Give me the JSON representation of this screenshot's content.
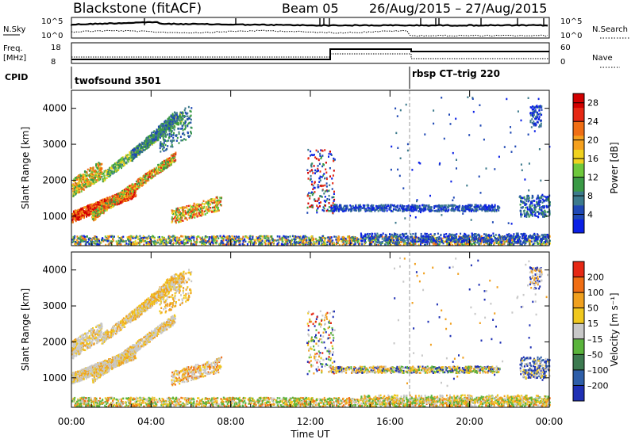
{
  "header": {
    "title": "Blackstone (fitACF)",
    "beam": "Beam 05",
    "dates": "26/Aug/2015 – 27/Aug/2015"
  },
  "status_panels": {
    "nsky_label": "N.Sky",
    "nsky_tick_top": "10^5",
    "nsky_tick_bottom": "10^0",
    "nsearch_label": "N.Search",
    "nsearch_tick_top": "10^5",
    "nsearch_tick_bottom": "10^0",
    "freq_label_1": "Freq.",
    "freq_label_2": "[MHz]",
    "freq_tick_top": "18",
    "freq_tick_bottom": "8",
    "nave_label": "Nave",
    "nave_tick_top": "60",
    "nave_tick_bottom": "0",
    "cpid_label": "CPID",
    "cpid_1": "twofsound 3501",
    "cpid_2": "rbsp CT–trig 220"
  },
  "colors": {
    "power": [
      "#0a1fe6",
      "#1f48b4",
      "#3c7a8c",
      "#3a9a46",
      "#6ec83c",
      "#f0d21e",
      "#f5a01e",
      "#f06e14",
      "#e62814",
      "#d20000"
    ],
    "velocity": [
      "#1f30b4",
      "#2e5ea8",
      "#3c7a50",
      "#5ab43c",
      "#c8c8c8",
      "#f0c81e",
      "#f0a01e",
      "#f06e14",
      "#e62814"
    ]
  },
  "chart_data": [
    {
      "type": "heatmap",
      "name": "power",
      "ylabel": "Slant Range [km]",
      "yticks": [
        "1000",
        "2000",
        "3000",
        "4000"
      ],
      "ylim": [
        180,
        4500
      ],
      "xticks": [
        "00:00",
        "04:00",
        "08:00",
        "12:00",
        "16:00",
        "20:00",
        "00:00"
      ],
      "xlim": [
        0,
        24
      ],
      "colorbar_label": "Power [dB]",
      "colorbar_ticks": [
        "4",
        "8",
        "12",
        "16",
        "20",
        "24",
        "28"
      ],
      "colorbar_range": [
        0,
        30
      ]
    },
    {
      "type": "heatmap",
      "name": "velocity",
      "ylabel": "Slant Range [km]",
      "yticks": [
        "1000",
        "2000",
        "3000",
        "4000"
      ],
      "ylim": [
        180,
        4500
      ],
      "xticks": [
        "00:00",
        "04:00",
        "08:00",
        "12:00",
        "16:00",
        "20:00",
        "00:00"
      ],
      "xlim": [
        0,
        24
      ],
      "xlabel": "Time UT",
      "colorbar_label": "Velocity [m s⁻¹]",
      "colorbar_ticks": [
        "200",
        "100",
        "50",
        "15",
        "–15",
        "–50",
        "–100",
        "–200"
      ]
    }
  ]
}
